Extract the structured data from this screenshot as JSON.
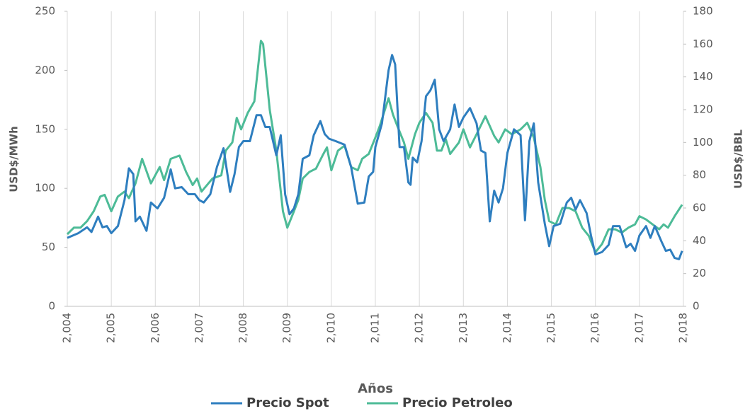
{
  "chart_data": {
    "type": "line",
    "x_label": "Años",
    "y_label": "USD$/MWh",
    "y2_label": "USD$/BBL",
    "xlim": [
      2004,
      2018
    ],
    "xticks": [
      {
        "value": 2004,
        "label": "2,004"
      },
      {
        "value": 2005,
        "label": "2,005"
      },
      {
        "value": 2006,
        "label": "2,006"
      },
      {
        "value": 2007,
        "label": "2,007"
      },
      {
        "value": 2008,
        "label": "2,008"
      },
      {
        "value": 2009,
        "label": "2,009"
      },
      {
        "value": 2010,
        "label": "2,010"
      },
      {
        "value": 2011,
        "label": "2,011"
      },
      {
        "value": 2012,
        "label": "2,012"
      },
      {
        "value": 2013,
        "label": "2,013"
      },
      {
        "value": 2014,
        "label": "2,014"
      },
      {
        "value": 2015,
        "label": "2,015"
      },
      {
        "value": 2016,
        "label": "2,016"
      },
      {
        "value": 2017,
        "label": "2,017"
      },
      {
        "value": 2018,
        "label": "2,018"
      }
    ],
    "ylim": [
      0,
      250
    ],
    "yticks": [
      0,
      50,
      100,
      150,
      200,
      250
    ],
    "y2lim": [
      0,
      180
    ],
    "y2ticks": [
      0,
      20,
      40,
      60,
      80,
      100,
      120,
      140,
      160,
      180
    ],
    "grid": true,
    "legend": "bottom",
    "series": [
      {
        "name": "Precio Spot",
        "color": "#2e7ebf",
        "axis": "y",
        "x": [
          2004.0,
          2004.25,
          2004.45,
          2004.55,
          2004.7,
          2004.8,
          2004.9,
          2005.0,
          2005.15,
          2005.3,
          2005.4,
          2005.5,
          2005.55,
          2005.65,
          2005.8,
          2005.9,
          2006.05,
          2006.2,
          2006.35,
          2006.45,
          2006.6,
          2006.75,
          2006.9,
          2007.0,
          2007.1,
          2007.25,
          2007.4,
          2007.55,
          2007.7,
          2007.8,
          2007.9,
          2008.0,
          2008.15,
          2008.3,
          2008.4,
          2008.5,
          2008.6,
          2008.75,
          2008.85,
          2008.95,
          2009.05,
          2009.15,
          2009.25,
          2009.35,
          2009.5,
          2009.6,
          2009.75,
          2009.85,
          2009.95,
          2010.1,
          2010.3,
          2010.45,
          2010.6,
          2010.75,
          2010.85,
          2010.95,
          2011.0,
          2011.15,
          2011.3,
          2011.38,
          2011.45,
          2011.55,
          2011.65,
          2011.75,
          2011.8,
          2011.85,
          2011.95,
          2012.05,
          2012.15,
          2012.25,
          2012.35,
          2012.45,
          2012.55,
          2012.7,
          2012.8,
          2012.9,
          2013.0,
          2013.15,
          2013.3,
          2013.4,
          2013.5,
          2013.6,
          2013.7,
          2013.8,
          2013.9,
          2014.0,
          2014.15,
          2014.3,
          2014.4,
          2014.5,
          2014.6,
          2014.7,
          2014.85,
          2014.95,
          2015.05,
          2015.2,
          2015.35,
          2015.45,
          2015.55,
          2015.65,
          2015.8,
          2015.9,
          2016.0,
          2016.15,
          2016.3,
          2016.4,
          2016.55,
          2016.7,
          2016.8,
          2016.9,
          2017.0,
          2017.15,
          2017.25,
          2017.35,
          2017.5,
          2017.6,
          2017.7,
          2017.8,
          2017.9,
          2017.97
        ],
        "values": [
          58,
          62,
          67,
          63,
          76,
          67,
          68,
          62,
          68,
          90,
          117,
          112,
          72,
          76,
          64,
          88,
          83,
          92,
          116,
          100,
          101,
          95,
          95,
          90,
          88,
          95,
          118,
          134,
          97,
          112,
          135,
          140,
          140,
          162,
          162,
          152,
          152,
          128,
          145,
          95,
          78,
          83,
          95,
          125,
          128,
          145,
          157,
          146,
          142,
          140,
          137,
          118,
          87,
          88,
          110,
          114,
          135,
          155,
          200,
          213,
          205,
          135,
          135,
          105,
          103,
          126,
          122,
          140,
          178,
          183,
          192,
          150,
          140,
          150,
          171,
          152,
          160,
          168,
          155,
          132,
          130,
          72,
          98,
          88,
          100,
          130,
          150,
          145,
          73,
          140,
          155,
          105,
          70,
          51,
          68,
          70,
          88,
          92,
          82,
          90,
          79,
          60,
          44,
          46,
          52,
          68,
          68,
          50,
          53,
          47,
          60,
          68,
          58,
          68,
          55,
          47,
          48,
          41,
          40,
          47
        ]
      },
      {
        "name": "Precio Petroleo",
        "color": "#4dbb97",
        "axis": "y2",
        "x": [
          2004.0,
          2004.15,
          2004.3,
          2004.45,
          2004.6,
          2004.75,
          2004.85,
          2005.0,
          2005.15,
          2005.3,
          2005.4,
          2005.55,
          2005.7,
          2005.9,
          2006.1,
          2006.2,
          2006.35,
          2006.55,
          2006.7,
          2006.85,
          2006.95,
          2007.05,
          2007.3,
          2007.5,
          2007.6,
          2007.75,
          2007.85,
          2007.95,
          2008.1,
          2008.25,
          2008.4,
          2008.45,
          2008.6,
          2008.75,
          2008.9,
          2009.0,
          2009.15,
          2009.25,
          2009.35,
          2009.5,
          2009.65,
          2009.8,
          2009.9,
          2010.0,
          2010.15,
          2010.3,
          2010.45,
          2010.6,
          2010.7,
          2010.85,
          2011.0,
          2011.1,
          2011.3,
          2011.4,
          2011.5,
          2011.65,
          2011.75,
          2011.9,
          2012.0,
          2012.15,
          2012.3,
          2012.4,
          2012.5,
          2012.6,
          2012.7,
          2012.9,
          2013.0,
          2013.15,
          2013.3,
          2013.5,
          2013.7,
          2013.8,
          2013.95,
          2014.1,
          2014.3,
          2014.45,
          2014.6,
          2014.75,
          2014.85,
          2014.95,
          2015.1,
          2015.25,
          2015.4,
          2015.55,
          2015.7,
          2015.85,
          2016.0,
          2016.15,
          2016.3,
          2016.45,
          2016.6,
          2016.75,
          2016.9,
          2017.0,
          2017.15,
          2017.3,
          2017.45,
          2017.55,
          2017.65,
          2017.8,
          2017.97
        ],
        "values": [
          44,
          48,
          48,
          52,
          58,
          67,
          68,
          58,
          67,
          70,
          66,
          75,
          90,
          75,
          85,
          77,
          90,
          92,
          82,
          74,
          78,
          70,
          78,
          80,
          95,
          100,
          115,
          108,
          118,
          125,
          162,
          160,
          120,
          95,
          58,
          48,
          58,
          65,
          78,
          82,
          84,
          92,
          97,
          83,
          95,
          98,
          85,
          83,
          90,
          93,
          103,
          110,
          127,
          117,
          110,
          100,
          90,
          105,
          112,
          118,
          112,
          95,
          95,
          102,
          93,
          100,
          108,
          97,
          105,
          116,
          104,
          100,
          108,
          105,
          108,
          112,
          103,
          85,
          65,
          52,
          50,
          60,
          60,
          58,
          48,
          43,
          33,
          38,
          47,
          47,
          45,
          48,
          50,
          55,
          53,
          50,
          47,
          50,
          48,
          55,
          62
        ]
      }
    ]
  }
}
